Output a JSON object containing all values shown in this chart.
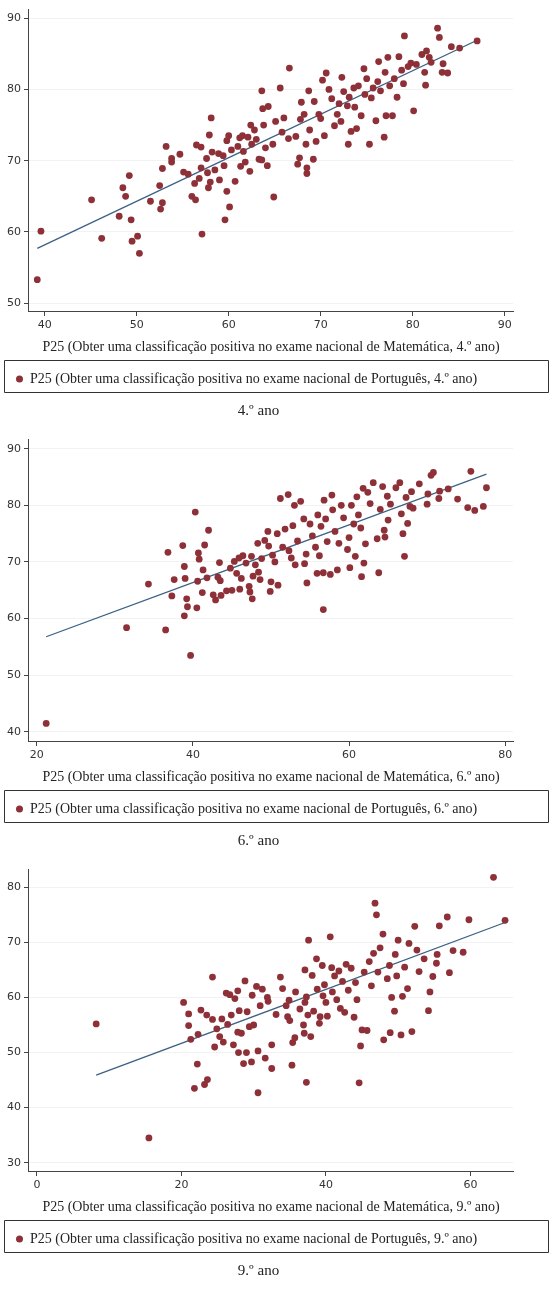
{
  "chart_data": [
    {
      "type": "scatter",
      "title": "4.º ano",
      "xlabel": "P25 (Obter uma classificação positiva no exame nacional de Matemática, 4.º ano)",
      "xlim": [
        38.3,
        90.9
      ],
      "xticks": [
        40,
        50,
        60,
        70,
        80,
        90
      ],
      "ylim": [
        48.9,
        91.2
      ],
      "yticks": [
        50,
        60,
        70,
        80,
        90
      ],
      "grid": "y",
      "legend": "bottom",
      "marker": "circle",
      "series": [
        {
          "name": "P25 (Obter uma classificação positiva no exame nacional de Português, 4.º ano)",
          "color": "#8e3038",
          "x": [
            39.2,
            39.6,
            45.1,
            46.2,
            48.1,
            48.5,
            48.8,
            49.2,
            49.4,
            49.5,
            50.1,
            50.3,
            51.5,
            52.5,
            52.6,
            52.8,
            52.8,
            53.2,
            53.8,
            53.8,
            54.7,
            55.1,
            55.6,
            56,
            56.3,
            56.4,
            56.5,
            56.8,
            57,
            57,
            57.1,
            57.6,
            57.7,
            57.8,
            57.9,
            58,
            58.1,
            58.2,
            58.5,
            58.9,
            59,
            59.4,
            59.5,
            59.6,
            59.8,
            59.8,
            60,
            60.1,
            60.3,
            60.7,
            61,
            61.2,
            61.3,
            61.5,
            61.6,
            61.8,
            62.1,
            62.3,
            62.4,
            62.5,
            62.8,
            63,
            63.3,
            63.6,
            63.6,
            63.7,
            63.8,
            64,
            64.2,
            64.3,
            64.8,
            64.9,
            65.1,
            65.6,
            65.8,
            66,
            66.5,
            66.6,
            67.3,
            67.5,
            67.7,
            67.8,
            67.9,
            68.2,
            68.4,
            68.5,
            68.5,
            68.7,
            68.8,
            69.2,
            69.3,
            69.5,
            69.8,
            70,
            70.2,
            70.4,
            70.6,
            70.9,
            71.2,
            71.5,
            71.8,
            72,
            72.2,
            72.3,
            72.5,
            72.9,
            73,
            73.1,
            73.3,
            73.6,
            73.7,
            73.9,
            74.1,
            74.4,
            74.7,
            74.8,
            75,
            75.3,
            75.5,
            75.7,
            76,
            76.2,
            76.3,
            76.5,
            76.9,
            77,
            77.1,
            77.3,
            77.5,
            77.8,
            78,
            78.3,
            78.5,
            78.8,
            79,
            79.1,
            79.5,
            79.8,
            80.1,
            80.4,
            81,
            81.3,
            81.4,
            81.5,
            81.8,
            82,
            82.7,
            82.9,
            83.2,
            83.3,
            83.8,
            84.2,
            85.1,
            87
          ],
          "values": [
            53.3,
            60.1,
            64.5,
            59.1,
            62.2,
            66.2,
            65,
            67.9,
            61.7,
            58.7,
            59.4,
            57,
            64.3,
            66.5,
            63.2,
            64.1,
            68.9,
            72,
            70.3,
            69.8,
            70.9,
            68.4,
            68.1,
            65,
            66.8,
            64.5,
            72.2,
            67.5,
            69,
            71.9,
            59.7,
            70.3,
            68.3,
            66.2,
            73.6,
            67,
            76,
            71.2,
            68.7,
            71,
            67.3,
            70.7,
            69.3,
            61.7,
            65.7,
            72.8,
            73.5,
            63.5,
            71.5,
            67.1,
            72,
            73.2,
            69.2,
            73.5,
            71.3,
            69.8,
            73.3,
            68.5,
            75,
            72.3,
            74.3,
            73,
            70.2,
            79.8,
            70.1,
            77.3,
            75,
            71.8,
            69.3,
            77.6,
            72.3,
            64.9,
            75.5,
            80.2,
            74,
            76,
            73.1,
            83,
            73.4,
            69.5,
            70.4,
            75.8,
            78.2,
            76.5,
            72.3,
            69,
            68.2,
            79.8,
            74.3,
            70.2,
            78.3,
            72.7,
            76.5,
            75.9,
            81.3,
            73.5,
            82.3,
            80,
            78.7,
            74.9,
            76.5,
            78,
            75.5,
            81.7,
            79.7,
            77.7,
            72.3,
            78.9,
            74.1,
            80.2,
            77.5,
            74.5,
            80.5,
            76.3,
            82.9,
            79.3,
            81.5,
            72.3,
            78.8,
            80.2,
            75.6,
            81.1,
            83.9,
            79.8,
            73.3,
            82.4,
            76.3,
            84.5,
            80.5,
            76.3,
            81.5,
            78.9,
            84.6,
            82.7,
            80.8,
            87.5,
            83.2,
            83.7,
            77,
            83.5,
            84.9,
            82.4,
            80.6,
            85.4,
            84.5,
            83.8,
            88.6,
            87.3,
            82.4,
            83.6,
            82.3,
            86,
            85.8,
            86.8
          ]
        },
        {
          "type": "line",
          "marker": "none",
          "color": "#3b6185",
          "x": [
            39.2,
            87
          ],
          "values": [
            57.7,
            86.9
          ]
        }
      ]
    },
    {
      "type": "scatter",
      "title": "6.º ano",
      "xlabel": "P25 (Obter uma classificação positiva no exame nacional de Matemática, 6.º ano)",
      "xlim": [
        19,
        81
      ],
      "xticks": [
        20,
        40,
        60,
        80
      ],
      "ylim": [
        38.4,
        91.6
      ],
      "yticks": [
        40,
        50,
        60,
        70,
        80,
        90
      ],
      "grid": "y",
      "legend": "bottom",
      "marker": "circle",
      "series": [
        {
          "name": "P25 (Obter uma classificação positiva no exame nacional de Português, 6.º ano)",
          "color": "#8e3038",
          "x": [
            21.2,
            31.5,
            34.3,
            36.5,
            36.8,
            37.3,
            37.6,
            38.7,
            38.9,
            38.9,
            39,
            39.2,
            39.3,
            39.7,
            40.3,
            40.5,
            40.6,
            40.7,
            40.8,
            41.2,
            41.3,
            41.5,
            41.8,
            42,
            42.6,
            42.9,
            43.2,
            43.4,
            43.5,
            43.6,
            44.3,
            44.8,
            45,
            45.3,
            45.6,
            45.9,
            46,
            46.2,
            46.4,
            46.8,
            47.2,
            47.3,
            47.5,
            47.6,
            47.7,
            48,
            48.3,
            48.4,
            48.6,
            48.8,
            49.2,
            49.6,
            49.7,
            49.9,
            50,
            50.2,
            50.5,
            50.8,
            50.9,
            51.2,
            51.5,
            51.8,
            52.2,
            52.3,
            52.6,
            52.8,
            53,
            53.1,
            53.4,
            53.8,
            54.2,
            54.3,
            54.5,
            54.6,
            55,
            55.3,
            55.7,
            55.9,
            56,
            56.2,
            56.4,
            56.7,
            56.7,
            56.8,
            57,
            57.2,
            57.6,
            57.8,
            57.9,
            58.2,
            58.5,
            58.7,
            59,
            59.3,
            59.8,
            60,
            60.1,
            60.3,
            60.6,
            60.8,
            61,
            61.2,
            61.5,
            61.6,
            61.8,
            61.9,
            62.1,
            62.4,
            62.7,
            63.1,
            63.6,
            63.8,
            64,
            64.3,
            64.5,
            64.6,
            64.9,
            65,
            65.3,
            66,
            66.5,
            66.7,
            66.9,
            67.1,
            67.3,
            67.5,
            67.8,
            68,
            68.2,
            69,
            70,
            70.1,
            70.5,
            70.8,
            71.5,
            71.6,
            72.7,
            73.9,
            75.2,
            75.6,
            76.1,
            77.2,
            77.6
          ],
          "values": [
            41.5,
            58.4,
            66.1,
            58,
            71.7,
            64,
            66.9,
            72.9,
            60.5,
            69.2,
            67.1,
            63.5,
            62.1,
            53.5,
            78.8,
            61.9,
            66.6,
            71.6,
            70.5,
            64.6,
            68.6,
            73,
            67.2,
            75.6,
            64.2,
            63.3,
            67.3,
            69.9,
            66.7,
            64.1,
            64.9,
            68.9,
            65,
            70.1,
            68,
            70.7,
            65.2,
            67.1,
            71.1,
            69.8,
            65.7,
            64.7,
            71,
            63.5,
            67.5,
            69.5,
            73.3,
            68.2,
            66.9,
            70.6,
            73.8,
            75.4,
            72.8,
            64.8,
            66.5,
            71.2,
            70,
            75,
            65.9,
            81.2,
            72.6,
            75.8,
            81.9,
            72,
            70.7,
            76.4,
            80,
            69.5,
            73.7,
            80.7,
            77.6,
            69.7,
            71.4,
            66.3,
            76.7,
            74.6,
            72.6,
            68,
            78.3,
            71.1,
            76.3,
            61.6,
            68.1,
            80.9,
            77.6,
            73.6,
            67.8,
            81.8,
            79.2,
            75.4,
            68.6,
            73.3,
            80,
            77.8,
            72.2,
            74.3,
            69,
            80,
            76.7,
            71,
            81.5,
            78.3,
            76,
            67.4,
            83,
            69.8,
            73.2,
            82.3,
            80.3,
            84,
            74.1,
            68.1,
            79.3,
            83.3,
            75.6,
            74.4,
            81.6,
            77.4,
            80.2,
            83.1,
            84,
            78.5,
            75,
            71,
            81.4,
            76.8,
            79.8,
            82.4,
            79.5,
            83.8,
            80.2,
            82,
            85.3,
            85.8,
            81.2,
            82.5,
            82.9,
            81.1,
            79.6,
            86,
            79.1,
            79.8,
            83.1
          ]
        },
        {
          "type": "line",
          "marker": "none",
          "color": "#3b6185",
          "x": [
            21.2,
            77.6
          ],
          "values": [
            56.8,
            85.5
          ]
        }
      ]
    },
    {
      "type": "scatter",
      "title": "9.º ano",
      "xlabel": "P25 (Obter uma classificação positiva no exame nacional de Matemática, 9.º ano)",
      "xlim": [
        -1.1,
        65.9
      ],
      "xticks": [
        0,
        20,
        40,
        60
      ],
      "ylim": [
        28.5,
        83.2
      ],
      "yticks": [
        30,
        40,
        50,
        60,
        70,
        80
      ],
      "grid": "y",
      "legend": "bottom",
      "marker": "circle",
      "series": [
        {
          "name": "P25 (Obter uma classificação positiva no exame nacional de Português, 9.º ano)",
          "color": "#8e3038",
          "x": [
            8.2,
            15.5,
            20.3,
            21,
            21,
            21.3,
            21.8,
            22.2,
            22.3,
            22.7,
            23.2,
            23.5,
            23.6,
            24.3,
            24.3,
            24.6,
            24.9,
            25.3,
            25.6,
            25.8,
            26.2,
            26.4,
            26.7,
            26.9,
            27.2,
            27.4,
            27.8,
            27.8,
            27.9,
            28,
            28.3,
            28.6,
            28.8,
            29,
            29.1,
            29.4,
            29.7,
            29.8,
            30,
            30.4,
            30.6,
            30.6,
            30.9,
            31.2,
            31.6,
            31.9,
            32,
            32.5,
            32.5,
            33.1,
            33.7,
            34,
            34.5,
            34.7,
            34.9,
            35,
            35.3,
            35.4,
            35.7,
            35.8,
            36.4,
            36.9,
            37,
            37.1,
            37.1,
            37.3,
            37.3,
            37.5,
            37.6,
            37.9,
            38.1,
            38.3,
            38.7,
            38.8,
            39.1,
            39.2,
            39.5,
            39.6,
            39.8,
            40,
            40.2,
            40.6,
            40.8,
            40.9,
            41.2,
            41.5,
            41.8,
            42,
            42.3,
            42.6,
            42.8,
            43.1,
            43.5,
            43.9,
            44.1,
            44.3,
            44.6,
            44.8,
            45,
            45.3,
            45.7,
            46,
            46.3,
            46.6,
            46.8,
            47,
            47.2,
            47.5,
            47.9,
            48,
            48.5,
            48.8,
            48.9,
            49.1,
            49.5,
            49.6,
            49.8,
            50,
            50.4,
            50.6,
            50.9,
            51.3,
            51.5,
            51.9,
            52.3,
            52.6,
            52.9,
            53.6,
            54.2,
            54.4,
            54.8,
            55.3,
            55.4,
            55.7,
            56.8,
            57.1,
            57.6,
            59,
            59.8,
            63.2,
            64.8
          ],
          "values": [
            55.2,
            34.5,
            59.1,
            57,
            54.9,
            52.4,
            43.5,
            47.9,
            53.3,
            57.7,
            44.2,
            56.8,
            45.1,
            56,
            63.7,
            51,
            54.3,
            52.9,
            56.1,
            51.9,
            60.8,
            55.1,
            60.5,
            56.8,
            51.4,
            59.8,
            61.2,
            53.7,
            50,
            57.6,
            53.5,
            48,
            63,
            50,
            57.4,
            54.7,
            48.3,
            60.4,
            55,
            62,
            50.3,
            42.7,
            58.5,
            61.5,
            49,
            60,
            59.3,
            47.1,
            51.4,
            56.9,
            63.7,
            61.6,
            58.5,
            56.5,
            59.5,
            55.8,
            47.7,
            51.8,
            52.7,
            61,
            57.9,
            55,
            53.5,
            65,
            59.1,
            44.6,
            60.1,
            56.8,
            70.4,
            52.9,
            64,
            57.5,
            67,
            61.5,
            55.3,
            56.5,
            65.8,
            60.3,
            62.3,
            59.1,
            56.6,
            71,
            65.4,
            61,
            63.9,
            59.6,
            64.8,
            58,
            62.9,
            57.3,
            66,
            61.3,
            65.3,
            56.4,
            62.7,
            59.6,
            44.5,
            51.2,
            54.1,
            64.6,
            54,
            66.5,
            62.1,
            68,
            77.1,
            75,
            64.6,
            69,
            71.5,
            52.3,
            63.4,
            65.8,
            53.6,
            60,
            57.5,
            67.8,
            63.9,
            70.4,
            53.2,
            60.2,
            65.5,
            61.6,
            69.8,
            53.8,
            72.9,
            68.6,
            64.7,
            67,
            57.6,
            61,
            63.8,
            66.2,
            67.8,
            73,
            74.6,
            64.5,
            68.5,
            68.2,
            74.1,
            81.8,
            74
          ]
        },
        {
          "type": "line",
          "marker": "none",
          "color": "#3b6185",
          "x": [
            8.2,
            64.8
          ],
          "values": [
            45.9,
            73.6
          ]
        }
      ]
    }
  ]
}
